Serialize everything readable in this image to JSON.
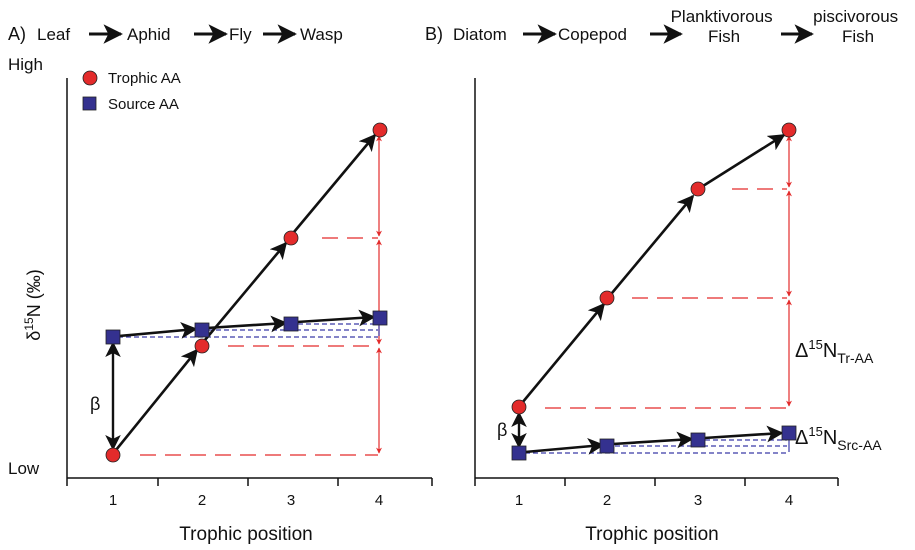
{
  "colors": {
    "trophic_marker": "#e32b2b",
    "source_marker": "#34318f",
    "trophic_guide": "#e32b2b",
    "source_guide": "#3a3aa8",
    "axis": "#111111",
    "arrow": "#111111"
  },
  "y_axis": {
    "label_prefix": "δ",
    "label_sup": "15",
    "label_rest": "N (‰)",
    "high_label": "High",
    "low_label": "Low"
  },
  "panels": [
    {
      "id": "A",
      "title_label": "A)",
      "food_chain": [
        "Leaf",
        "Aphid",
        "Fly",
        "Wasp"
      ],
      "x_label": "Trophic position",
      "x_ticks": [
        "1",
        "2",
        "3",
        "4"
      ],
      "legend": [
        {
          "label": "Trophic AA",
          "shape": "circle"
        },
        {
          "label": "Source AA",
          "shape": "square"
        }
      ],
      "beta_label": "β",
      "trophic_values": [
        1,
        2,
        3,
        4
      ],
      "source_values": [
        1,
        2,
        3,
        4
      ]
    },
    {
      "id": "B",
      "title_label": "B)",
      "food_chain": [
        "Diatom",
        "Copepod",
        "Planktivorous\nFish",
        "piscivorous\nFish"
      ],
      "x_label": "Trophic position",
      "x_ticks": [
        "1",
        "2",
        "3",
        "4"
      ],
      "beta_label": "β",
      "delta_tr_label": "Δ",
      "delta_tr_sup": "15",
      "delta_tr_main": "N",
      "delta_tr_sub": "Tr-AA",
      "delta_src_label": "Δ",
      "delta_src_sup": "15",
      "delta_src_main": "N",
      "delta_src_sub": "Src-AA",
      "trophic_values": [
        1,
        2,
        3,
        4
      ],
      "source_values": [
        1,
        2,
        3,
        4
      ]
    }
  ]
}
